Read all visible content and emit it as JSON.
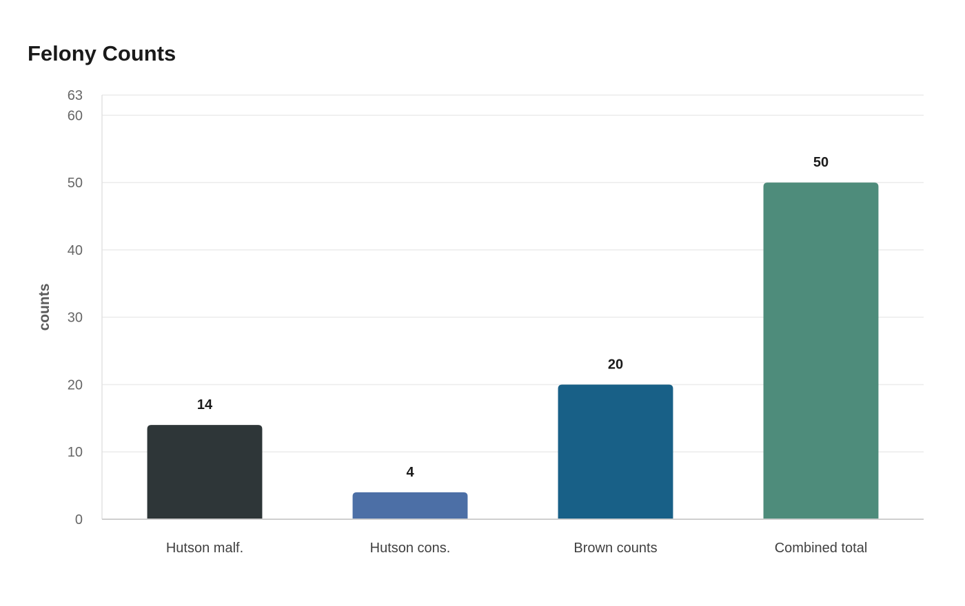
{
  "chart_data": {
    "type": "bar",
    "title": "Felony Counts",
    "xlabel": "",
    "ylabel": "counts",
    "categories": [
      "Hutson malf.",
      "Hutson cons.",
      "Brown counts",
      "Combined total"
    ],
    "values": [
      14,
      4,
      20,
      50
    ],
    "value_labels": [
      "14",
      "4",
      "20",
      "50"
    ],
    "colors": [
      "#2e3638",
      "#4c6fa6",
      "#186087",
      "#4e8c7b"
    ],
    "ylim": [
      0,
      63
    ],
    "yticks": [
      0,
      10,
      20,
      30,
      40,
      50,
      60,
      63
    ],
    "grid": true,
    "legend": "none"
  }
}
